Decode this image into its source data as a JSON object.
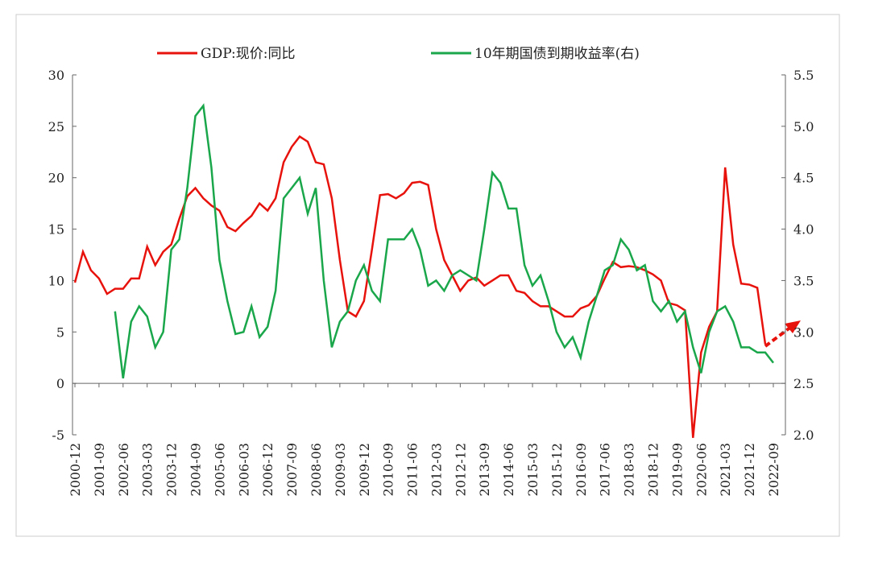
{
  "chart_data": {
    "type": "line",
    "categories": [
      "2000-12",
      null,
      null,
      "2001-09",
      null,
      null,
      "2002-06",
      null,
      null,
      "2003-03",
      null,
      null,
      "2003-12",
      null,
      null,
      "2004-09",
      null,
      null,
      "2005-06",
      null,
      null,
      "2006-03",
      null,
      null,
      "2006-12",
      null,
      null,
      "2007-09",
      null,
      null,
      "2008-06",
      null,
      null,
      "2009-03",
      null,
      null,
      "2009-12",
      null,
      null,
      "2010-09",
      null,
      null,
      "2011-06",
      null,
      null,
      "2012-03",
      null,
      null,
      "2012-12",
      null,
      null,
      "2013-09",
      null,
      null,
      "2014-06",
      null,
      null,
      "2015-03",
      null,
      null,
      "2015-12",
      null,
      null,
      "2016-09",
      null,
      null,
      "2017-06",
      null,
      null,
      "2018-03",
      null,
      null,
      "2018-12",
      null,
      null,
      "2019-09",
      null,
      null,
      "2020-06",
      null,
      null,
      "2021-03",
      null,
      null,
      "2021-12",
      null,
      null,
      "2022-09"
    ],
    "series": [
      {
        "name": "GDP:现价:同比",
        "color": "#e8120c",
        "values": [
          9.8,
          12.8,
          11,
          10.2,
          8.7,
          9.2,
          9.2,
          10.2,
          10.2,
          13.3,
          11.5,
          12.8,
          13.5,
          16,
          18.2,
          19,
          18,
          17.3,
          16.8,
          15.2,
          14.8,
          15.6,
          16.3,
          17.5,
          16.8,
          18,
          21.5,
          23,
          24,
          23.5,
          21.5,
          21.3,
          18,
          12,
          7,
          6.5,
          8,
          13,
          18.3,
          18.4,
          18,
          18.5,
          19.5,
          19.6,
          19.3,
          15,
          12,
          10.5,
          9,
          10,
          10.3,
          9.5,
          10,
          10.5,
          10.5,
          9,
          8.8,
          8,
          7.5,
          7.5,
          7,
          6.5,
          6.5,
          7.3,
          7.6,
          8.5,
          10.2,
          11.8,
          11.3,
          11.4,
          11.3,
          11,
          10.6,
          10,
          7.8,
          7.6,
          7.1,
          -5.3,
          3,
          5.5,
          7,
          21,
          13.5,
          9.7,
          9.6,
          9.3,
          3.8,
          null
        ]
      },
      {
        "name": "10年期国债到期收益率(右)",
        "color": "#1aa64a",
        "axis": "y2",
        "values": [
          null,
          null,
          null,
          null,
          null,
          3.2,
          2.55,
          3.1,
          3.25,
          3.15,
          2.85,
          3.0,
          3.8,
          3.9,
          4.4,
          5.1,
          5.2,
          4.6,
          3.7,
          3.3,
          2.98,
          3.0,
          3.25,
          2.95,
          3.05,
          3.4,
          4.3,
          4.4,
          4.5,
          4.15,
          4.4,
          3.5,
          2.85,
          3.1,
          3.2,
          3.5,
          3.65,
          3.4,
          3.3,
          3.9,
          3.9,
          3.9,
          4.0,
          3.8,
          3.45,
          3.5,
          3.4,
          3.55,
          3.6,
          3.55,
          3.5,
          4.0,
          4.55,
          4.45,
          4.2,
          4.2,
          3.65,
          3.45,
          3.55,
          3.3,
          3.0,
          2.85,
          2.95,
          2.75,
          3.1,
          3.35,
          3.6,
          3.65,
          3.9,
          3.8,
          3.6,
          3.65,
          3.3,
          3.2,
          3.3,
          3.1,
          3.2,
          2.85,
          2.6,
          3.0,
          3.2,
          3.25,
          3.1,
          2.85,
          2.85,
          2.8,
          2.8,
          2.7
        ]
      }
    ],
    "ylim": [
      -5,
      30
    ],
    "yticks": [
      -5,
      0,
      5,
      10,
      15,
      20,
      25,
      30
    ],
    "y2lim": [
      2,
      5.5
    ],
    "y2ticks": [
      {
        "value": 2,
        "label": "2.0"
      },
      2.5,
      {
        "value": 3,
        "label": "3.0"
      },
      3.5,
      {
        "value": 4,
        "label": "4.0"
      },
      4.5,
      {
        "value": 5,
        "label": "5.0"
      },
      5.5
    ]
  }
}
